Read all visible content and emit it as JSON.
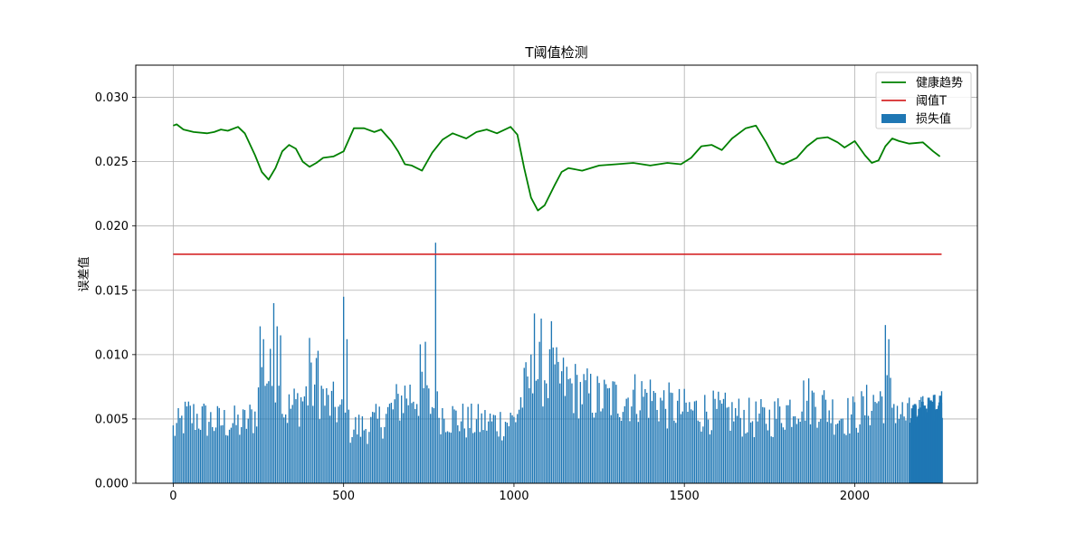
{
  "chart_data": {
    "type": "bar",
    "title": "T阈值检测",
    "xlabel": "",
    "ylabel": "误差值",
    "xlim": [
      -110,
      2360
    ],
    "ylim": [
      0,
      0.0325
    ],
    "x_ticks": [
      0,
      500,
      1000,
      1500,
      2000
    ],
    "x_tick_labels": [
      "0",
      "500",
      "1000",
      "1500",
      "2000"
    ],
    "y_ticks": [
      0,
      0.005,
      0.01,
      0.015,
      0.02,
      0.025,
      0.03
    ],
    "y_tick_labels": [
      "0.000",
      "0.005",
      "0.010",
      "0.015",
      "0.020",
      "0.025",
      "0.030"
    ],
    "grid": true,
    "legend_position": "top-right",
    "threshold": 0.0178,
    "threshold_range": [
      0,
      2255
    ],
    "colors": {
      "trend": "#008000",
      "threshold": "#d62728",
      "bars": "#1f77b4"
    },
    "series": [
      {
        "name": "健康趋势",
        "type": "line",
        "x": [
          0,
          10,
          30,
          60,
          100,
          120,
          140,
          160,
          190,
          210,
          240,
          260,
          280,
          300,
          320,
          340,
          360,
          380,
          400,
          420,
          440,
          470,
          500,
          530,
          560,
          590,
          610,
          640,
          660,
          680,
          700,
          730,
          760,
          790,
          820,
          840,
          860,
          890,
          920,
          950,
          990,
          1010,
          1030,
          1050,
          1070,
          1090,
          1120,
          1140,
          1160,
          1200,
          1250,
          1300,
          1350,
          1400,
          1450,
          1490,
          1520,
          1550,
          1580,
          1610,
          1640,
          1680,
          1710,
          1740,
          1770,
          1790,
          1830,
          1860,
          1890,
          1920,
          1950,
          1970,
          2000,
          2030,
          2050,
          2070,
          2090,
          2110,
          2130,
          2160,
          2200,
          2230,
          2250
        ],
        "values": [
          0.0278,
          0.0279,
          0.0275,
          0.0273,
          0.0272,
          0.0273,
          0.0275,
          0.0274,
          0.0277,
          0.0272,
          0.0255,
          0.0242,
          0.0236,
          0.0245,
          0.0258,
          0.0263,
          0.026,
          0.025,
          0.0246,
          0.0249,
          0.0253,
          0.0254,
          0.0258,
          0.0276,
          0.0276,
          0.0273,
          0.0275,
          0.0266,
          0.0258,
          0.0248,
          0.0247,
          0.0243,
          0.0257,
          0.0267,
          0.0272,
          0.027,
          0.0268,
          0.0273,
          0.0275,
          0.0272,
          0.0277,
          0.0271,
          0.0245,
          0.0222,
          0.0212,
          0.0216,
          0.0232,
          0.0242,
          0.0245,
          0.0243,
          0.0247,
          0.0248,
          0.0249,
          0.0247,
          0.0249,
          0.0248,
          0.0253,
          0.0262,
          0.0263,
          0.0259,
          0.0268,
          0.0276,
          0.0278,
          0.0265,
          0.025,
          0.0248,
          0.0253,
          0.0262,
          0.0268,
          0.0269,
          0.0265,
          0.0261,
          0.0266,
          0.0255,
          0.0249,
          0.0251,
          0.0262,
          0.0268,
          0.0266,
          0.0264,
          0.0265,
          0.0258,
          0.0254
        ]
      },
      {
        "name": "阈值T",
        "type": "hline"
      },
      {
        "name": "损失值",
        "type": "bar",
        "x_start": 0,
        "x_end": 2255,
        "bin_width": 5,
        "envelope": [
          [
            0,
            0.0045
          ],
          [
            20,
            0.005
          ],
          [
            40,
            0.0058
          ],
          [
            80,
            0.0056
          ],
          [
            120,
            0.0052
          ],
          [
            160,
            0.0052
          ],
          [
            200,
            0.005
          ],
          [
            240,
            0.0058
          ],
          [
            260,
            0.0088
          ],
          [
            280,
            0.0092
          ],
          [
            300,
            0.0082
          ],
          [
            330,
            0.0062
          ],
          [
            360,
            0.0067
          ],
          [
            390,
            0.0075
          ],
          [
            420,
            0.0085
          ],
          [
            450,
            0.0068
          ],
          [
            480,
            0.0065
          ],
          [
            520,
            0.0047
          ],
          [
            560,
            0.0048
          ],
          [
            600,
            0.0052
          ],
          [
            640,
            0.0062
          ],
          [
            680,
            0.0075
          ],
          [
            720,
            0.0076
          ],
          [
            750,
            0.0068
          ],
          [
            790,
            0.006
          ],
          [
            830,
            0.0055
          ],
          [
            870,
            0.0052
          ],
          [
            920,
            0.0052
          ],
          [
            960,
            0.0052
          ],
          [
            1000,
            0.0054
          ],
          [
            1040,
            0.0085
          ],
          [
            1070,
            0.0095
          ],
          [
            1100,
            0.0092
          ],
          [
            1150,
            0.0085
          ],
          [
            1200,
            0.0078
          ],
          [
            1250,
            0.0072
          ],
          [
            1300,
            0.0072
          ],
          [
            1350,
            0.0074
          ],
          [
            1400,
            0.0074
          ],
          [
            1450,
            0.0066
          ],
          [
            1500,
            0.0062
          ],
          [
            1550,
            0.0062
          ],
          [
            1600,
            0.006
          ],
          [
            1650,
            0.0058
          ],
          [
            1700,
            0.0055
          ],
          [
            1750,
            0.0055
          ],
          [
            1800,
            0.0063
          ],
          [
            1850,
            0.0072
          ],
          [
            1900,
            0.0068
          ],
          [
            1950,
            0.0058
          ],
          [
            2000,
            0.0058
          ],
          [
            2060,
            0.007
          ],
          [
            2100,
            0.0075
          ],
          [
            2140,
            0.0058
          ],
          [
            2180,
            0.0055
          ],
          [
            2220,
            0.006
          ],
          [
            2255,
            0.0065
          ]
        ],
        "spikes": [
          [
            255,
            0.0122
          ],
          [
            265,
            0.0112
          ],
          [
            295,
            0.014
          ],
          [
            305,
            0.0122
          ],
          [
            315,
            0.0115
          ],
          [
            400,
            0.0113
          ],
          [
            425,
            0.0103
          ],
          [
            500,
            0.0145
          ],
          [
            510,
            0.0112
          ],
          [
            725,
            0.0108
          ],
          [
            740,
            0.011
          ],
          [
            770,
            0.0187
          ],
          [
            1060,
            0.0132
          ],
          [
            1080,
            0.0128
          ],
          [
            1110,
            0.0126
          ],
          [
            2090,
            0.0123
          ],
          [
            2100,
            0.0112
          ]
        ]
      }
    ]
  }
}
